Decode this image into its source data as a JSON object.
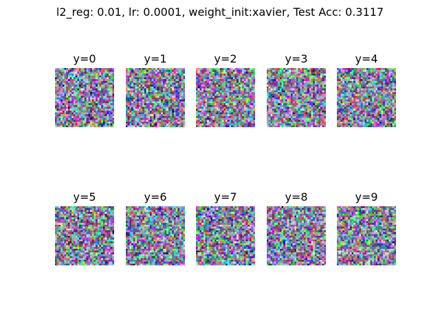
{
  "figure": {
    "title": "l2_reg: 0.01, lr: 0.0001, weight_init:xavier, Test Acc: 0.3117"
  },
  "panels": [
    {
      "label": "y=0"
    },
    {
      "label": "y=1"
    },
    {
      "label": "y=2"
    },
    {
      "label": "y=3"
    },
    {
      "label": "y=4"
    },
    {
      "label": "y=5"
    },
    {
      "label": "y=6"
    },
    {
      "label": "y=7"
    },
    {
      "label": "y=8"
    },
    {
      "label": "y=9"
    }
  ]
}
